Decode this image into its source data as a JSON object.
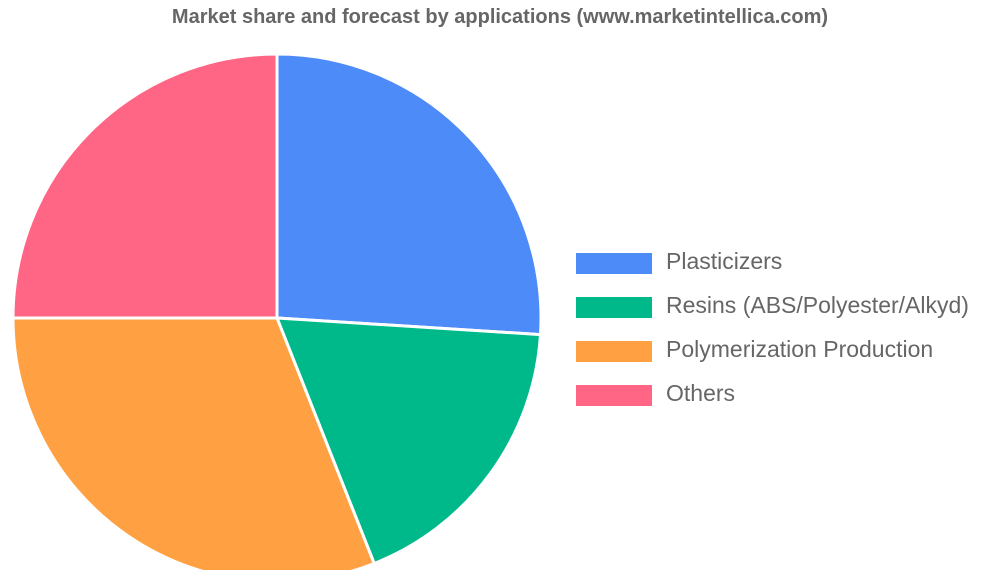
{
  "chart_data": {
    "type": "pie",
    "title": "Market share and forecast by applications (www.marketintellica.com)",
    "categories": [
      "Plasticizers",
      "Resins (ABS/Polyester/Alkyd)",
      "Polymerization Production",
      "Others"
    ],
    "values": [
      26,
      18,
      31,
      25
    ],
    "colors": [
      "#4d8bf9",
      "#00b98a",
      "#ffa142",
      "#ff6584"
    ],
    "legend_position": "right",
    "start_angle": "12 o'clock",
    "direction": "clockwise"
  }
}
